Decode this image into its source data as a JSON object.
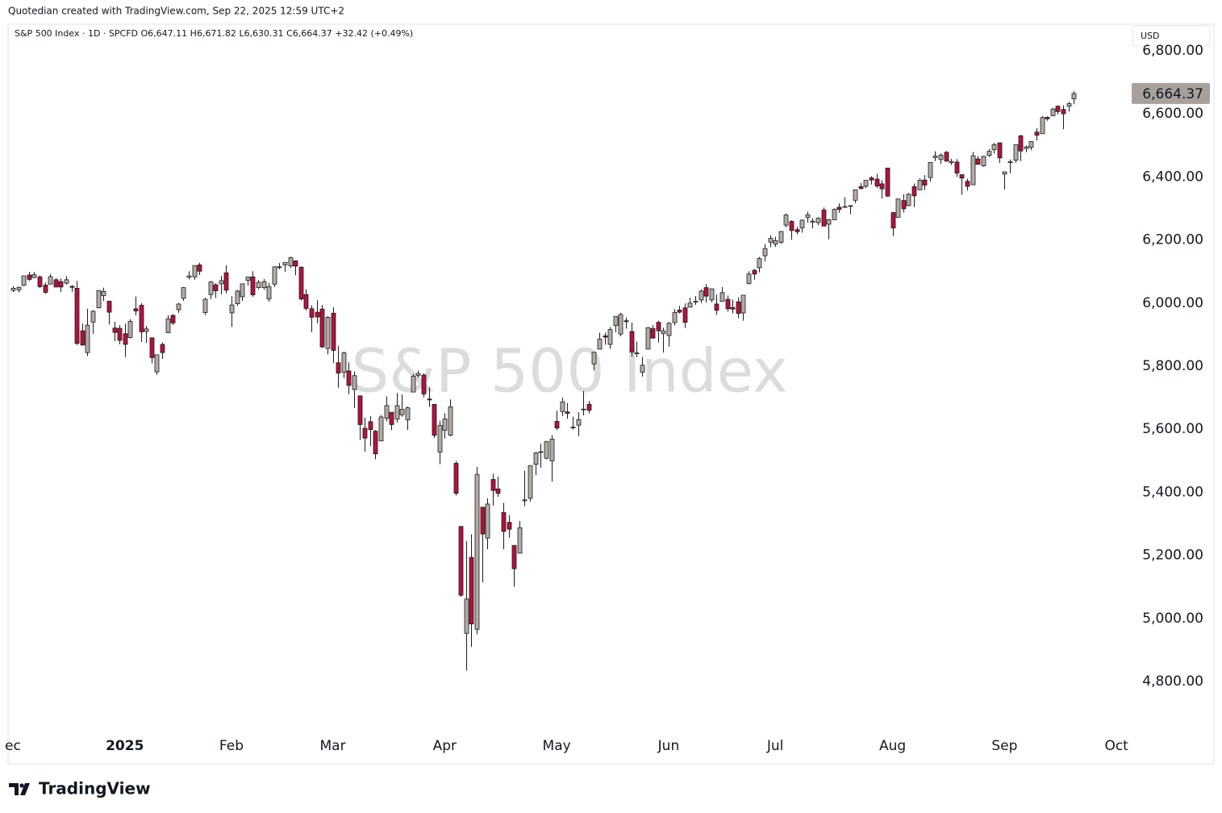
{
  "header": {
    "credit": "Quotedian created with TradingView.com, Sep 22, 2025 12:59 UTC+2",
    "legend": {
      "symbol": "S&P 500 Index · 1D · SPCFD",
      "open": "O6,647.11",
      "high": "H6,671.82",
      "low": "L6,630.31",
      "close": "C6,664.37",
      "change": "+32.42 (+0.49%)"
    },
    "currency": "USD"
  },
  "footer": {
    "logo": "TradingView"
  },
  "chart_data": {
    "type": "candlestick",
    "watermark": "S&P 500 Index",
    "up_color": "#b2aca7",
    "down_color": "#b3123e",
    "border_color": "#1b1b1b",
    "grid": false,
    "xlim": [
      -0.9,
      209.7
    ],
    "xticks": [
      {
        "value": 0,
        "label": "ec"
      },
      {
        "value": 21,
        "label": "2025"
      },
      {
        "value": 41,
        "label": "Feb"
      },
      {
        "value": 60,
        "label": "Mar"
      },
      {
        "value": 81,
        "label": "Apr"
      },
      {
        "value": 102,
        "label": "May"
      },
      {
        "value": 123,
        "label": "Jun"
      },
      {
        "value": 143,
        "label": "Jul"
      },
      {
        "value": 165,
        "label": "Aug"
      },
      {
        "value": 186,
        "label": "Sep"
      },
      {
        "value": 207,
        "label": "Oct"
      }
    ],
    "ylim": [
      4647,
      6884
    ],
    "yticks": [
      {
        "value": 4800,
        "label": "4,800.00"
      },
      {
        "value": 5000,
        "label": "5,000.00"
      },
      {
        "value": 5200,
        "label": "5,200.00"
      },
      {
        "value": 5400,
        "label": "5,400.00"
      },
      {
        "value": 5600,
        "label": "5,600.00"
      },
      {
        "value": 5800,
        "label": "5,800.00"
      },
      {
        "value": 6000,
        "label": "6,000.00"
      },
      {
        "value": 6200,
        "label": "6,200.00"
      },
      {
        "value": 6400,
        "label": "6,400.00"
      },
      {
        "value": 6600,
        "label": "6,600.00"
      },
      {
        "value": 6800,
        "label": "6,800.00"
      }
    ],
    "last_price": {
      "value": 6664.37,
      "label": "6,664.37"
    },
    "candles": [
      [
        6040,
        6053,
        6035,
        6047
      ],
      [
        6042,
        6052,
        6034,
        6050
      ],
      [
        6056,
        6087,
        6054,
        6086
      ],
      [
        6089,
        6099,
        6070,
        6075
      ],
      [
        6081,
        6099,
        6079,
        6090
      ],
      [
        6083,
        6088,
        6048,
        6052
      ],
      [
        6057,
        6065,
        6029,
        6034
      ],
      [
        6060,
        6092,
        6060,
        6084
      ],
      [
        6074,
        6079,
        6050,
        6051
      ],
      [
        6068,
        6078,
        6035,
        6051
      ],
      [
        6063,
        6085,
        6059,
        6074
      ],
      [
        6053,
        6057,
        6036,
        6050
      ],
      [
        6047,
        6070,
        5867,
        5872
      ],
      [
        5912,
        5935,
        5865,
        5867
      ],
      [
        5843,
        5982,
        5832,
        5930
      ],
      [
        5940,
        5978,
        5902,
        5974
      ],
      [
        5985,
        6040,
        5983,
        6040
      ],
      [
        6024,
        6049,
        6007,
        6037
      ],
      [
        6006,
        6006,
        5932,
        5971
      ],
      [
        5921,
        5941,
        5879,
        5907
      ],
      [
        5920,
        5930,
        5869,
        5882
      ],
      [
        5903,
        5935,
        5829,
        5869
      ],
      [
        5891,
        5949,
        5888,
        5942
      ],
      [
        5982,
        6021,
        5961,
        5975
      ],
      [
        5993,
        6000,
        5877,
        5909
      ],
      [
        5910,
        5928,
        5874,
        5918
      ],
      [
        5890,
        5890,
        5809,
        5827
      ],
      [
        5782,
        5836,
        5773,
        5836
      ],
      [
        5869,
        5875,
        5823,
        5843
      ],
      [
        5906,
        5961,
        5906,
        5950
      ],
      [
        5961,
        5965,
        5930,
        5937
      ],
      [
        5979,
        6000,
        5969,
        5997
      ],
      [
        6015,
        6051,
        6007,
        6049
      ],
      [
        6082,
        6101,
        6075,
        6086
      ],
      [
        6083,
        6119,
        6074,
        6119
      ],
      [
        6121,
        6128,
        6089,
        6101
      ],
      [
        5970,
        6017,
        5962,
        6012
      ],
      [
        6027,
        6070,
        6012,
        6067
      ],
      [
        6058,
        6063,
        6016,
        6039
      ],
      [
        6061,
        6086,
        6028,
        6071
      ],
      [
        6096,
        6120,
        6031,
        6041
      ],
      [
        5969,
        6022,
        5924,
        5994
      ],
      [
        5998,
        6042,
        5991,
        6038
      ],
      [
        6020,
        6062,
        6007,
        6061
      ],
      [
        6072,
        6084,
        6056,
        6083
      ],
      [
        6083,
        6101,
        6020,
        6026
      ],
      [
        6049,
        6073,
        6044,
        6066
      ],
      [
        6049,
        6076,
        6042,
        6068
      ],
      [
        6013,
        6064,
        6004,
        6052
      ],
      [
        6060,
        6116,
        6051,
        6115
      ],
      [
        6115,
        6127,
        6107,
        6115
      ],
      [
        6121,
        6129,
        6099,
        6129
      ],
      [
        6118,
        6147,
        6111,
        6144
      ],
      [
        6134,
        6135,
        6088,
        6117
      ],
      [
        6114,
        6115,
        6008,
        6013
      ],
      [
        6027,
        6044,
        5977,
        5983
      ],
      [
        5982,
        5993,
        5908,
        5955
      ],
      [
        5971,
        6009,
        5936,
        5956
      ],
      [
        5981,
        5994,
        5858,
        5861
      ],
      [
        5856,
        5959,
        5837,
        5955
      ],
      [
        5968,
        5987,
        5810,
        5850
      ],
      [
        5811,
        5865,
        5732,
        5778
      ],
      [
        5781,
        5846,
        5763,
        5842
      ],
      [
        5785,
        5812,
        5711,
        5739
      ],
      [
        5726,
        5783,
        5667,
        5770
      ],
      [
        5706,
        5706,
        5566,
        5615
      ],
      [
        5603,
        5637,
        5529,
        5572
      ],
      [
        5624,
        5642,
        5547,
        5599
      ],
      [
        5594,
        5598,
        5505,
        5522
      ],
      [
        5563,
        5645,
        5563,
        5639
      ],
      [
        5635,
        5704,
        5625,
        5675
      ],
      [
        5654,
        5654,
        5597,
        5615
      ],
      [
        5632,
        5715,
        5622,
        5675
      ],
      [
        5646,
        5711,
        5640,
        5663
      ],
      [
        5630,
        5672,
        5598,
        5668
      ],
      [
        5718,
        5775,
        5718,
        5768
      ],
      [
        5771,
        5786,
        5764,
        5777
      ],
      [
        5772,
        5777,
        5701,
        5712
      ],
      [
        5696,
        5733,
        5671,
        5693
      ],
      [
        5679,
        5679,
        5572,
        5581
      ],
      [
        5528,
        5627,
        5489,
        5612
      ],
      [
        5597,
        5651,
        5571,
        5633
      ],
      [
        5581,
        5695,
        5578,
        5671
      ],
      [
        5492,
        5500,
        5390,
        5397
      ],
      [
        5292,
        5292,
        5069,
        5074
      ],
      [
        4953,
        5246,
        4835,
        5062
      ],
      [
        5194,
        5267,
        4910,
        4983
      ],
      [
        4966,
        5481,
        4950,
        5457
      ],
      [
        5353,
        5353,
        5115,
        5268
      ],
      [
        5255,
        5381,
        5220,
        5363
      ],
      [
        5441,
        5459,
        5358,
        5406
      ],
      [
        5411,
        5450,
        5386,
        5397
      ],
      [
        5336,
        5367,
        5220,
        5276
      ],
      [
        5305,
        5328,
        5256,
        5283
      ],
      [
        5232,
        5232,
        5101,
        5158
      ],
      [
        5207,
        5309,
        5207,
        5288
      ],
      [
        5375,
        5469,
        5356,
        5376
      ],
      [
        5381,
        5485,
        5371,
        5485
      ],
      [
        5489,
        5528,
        5455,
        5525
      ],
      [
        5529,
        5554,
        5478,
        5529
      ],
      [
        5508,
        5563,
        5505,
        5561
      ],
      [
        5500,
        5581,
        5434,
        5569
      ],
      [
        5625,
        5659,
        5597,
        5604
      ],
      [
        5656,
        5700,
        5642,
        5687
      ],
      [
        5655,
        5683,
        5633,
        5650
      ],
      [
        5605,
        5640,
        5599,
        5607
      ],
      [
        5613,
        5654,
        5578,
        5631
      ],
      [
        5663,
        5721,
        5644,
        5664
      ],
      [
        5679,
        5690,
        5650,
        5660
      ],
      [
        5807,
        5845,
        5786,
        5844
      ],
      [
        5854,
        5906,
        5854,
        5886
      ],
      [
        5896,
        5906,
        5868,
        5892
      ],
      [
        5869,
        5924,
        5855,
        5916
      ],
      [
        5929,
        5958,
        5907,
        5958
      ],
      [
        5902,
        5969,
        5895,
        5964
      ],
      [
        5944,
        5954,
        5919,
        5941
      ],
      [
        5910,
        5938,
        5830,
        5845
      ],
      [
        5841,
        5878,
        5828,
        5842
      ],
      [
        5781,
        5829,
        5767,
        5803
      ],
      [
        5854,
        5924,
        5854,
        5922
      ],
      [
        5919,
        5930,
        5887,
        5889
      ],
      [
        5939,
        5944,
        5875,
        5912
      ],
      [
        5903,
        5922,
        5843,
        5912
      ],
      [
        5897,
        5940,
        5862,
        5936
      ],
      [
        5938,
        5981,
        5929,
        5970
      ],
      [
        5978,
        5991,
        5967,
        5971
      ],
      [
        5985,
        5999,
        5921,
        5939
      ],
      [
        5987,
        6017,
        5987,
        6000
      ],
      [
        6005,
        6022,
        5994,
        6006
      ],
      [
        6010,
        6043,
        6000,
        6038
      ],
      [
        6049,
        6060,
        6002,
        6022
      ],
      [
        6010,
        6046,
        6003,
        6045
      ],
      [
        5997,
        6027,
        5963,
        5977
      ],
      [
        6005,
        6051,
        6005,
        6033
      ],
      [
        6012,
        6024,
        5973,
        5982
      ],
      [
        5986,
        6011,
        5967,
        5981
      ],
      [
        6004,
        6018,
        5952,
        5967
      ],
      [
        5969,
        6025,
        5944,
        6025
      ],
      [
        6062,
        6101,
        6059,
        6092
      ],
      [
        6104,
        6108,
        6074,
        6092
      ],
      [
        6112,
        6146,
        6097,
        6141
      ],
      [
        6150,
        6187,
        6132,
        6173
      ],
      [
        6193,
        6215,
        6177,
        6205
      ],
      [
        6187,
        6210,
        6178,
        6198
      ],
      [
        6193,
        6228,
        6188,
        6227
      ],
      [
        6247,
        6284,
        6240,
        6279
      ],
      [
        6259,
        6263,
        6201,
        6230
      ],
      [
        6233,
        6242,
        6218,
        6226
      ],
      [
        6238,
        6265,
        6223,
        6263
      ],
      [
        6271,
        6290,
        6254,
        6280
      ],
      [
        6256,
        6269,
        6237,
        6260
      ],
      [
        6255,
        6272,
        6247,
        6269
      ],
      [
        6295,
        6303,
        6244,
        6244
      ],
      [
        6250,
        6267,
        6202,
        6264
      ],
      [
        6264,
        6300,
        6263,
        6297
      ],
      [
        6304,
        6316,
        6286,
        6297
      ],
      [
        6305,
        6336,
        6304,
        6306
      ],
      [
        6307,
        6310,
        6282,
        6309
      ],
      [
        6326,
        6360,
        6317,
        6359
      ],
      [
        6369,
        6381,
        6360,
        6363
      ],
      [
        6370,
        6390,
        6364,
        6389
      ],
      [
        6397,
        6402,
        6376,
        6390
      ],
      [
        6393,
        6410,
        6365,
        6371
      ],
      [
        6378,
        6390,
        6331,
        6362
      ],
      [
        6428,
        6428,
        6337,
        6339
      ],
      [
        6287,
        6288,
        6212,
        6238
      ],
      [
        6272,
        6330,
        6272,
        6330
      ],
      [
        6325,
        6345,
        6287,
        6299
      ],
      [
        6309,
        6349,
        6307,
        6345
      ],
      [
        6369,
        6379,
        6304,
        6340
      ],
      [
        6359,
        6395,
        6358,
        6389
      ],
      [
        6390,
        6406,
        6358,
        6374
      ],
      [
        6398,
        6446,
        6385,
        6446
      ],
      [
        6461,
        6481,
        6450,
        6466
      ],
      [
        6455,
        6475,
        6441,
        6469
      ],
      [
        6478,
        6482,
        6448,
        6450
      ],
      [
        6445,
        6457,
        6438,
        6449
      ],
      [
        6447,
        6456,
        6400,
        6412
      ],
      [
        6407,
        6407,
        6343,
        6396
      ],
      [
        6386,
        6394,
        6357,
        6370
      ],
      [
        6375,
        6479,
        6374,
        6467
      ],
      [
        6457,
        6466,
        6438,
        6440
      ],
      [
        6435,
        6467,
        6432,
        6465
      ],
      [
        6468,
        6488,
        6463,
        6481
      ],
      [
        6486,
        6508,
        6474,
        6502
      ],
      [
        6508,
        6508,
        6444,
        6460
      ],
      [
        6409,
        6416,
        6360,
        6416
      ],
      [
        6445,
        6455,
        6412,
        6448
      ],
      [
        6453,
        6502,
        6445,
        6502
      ],
      [
        6530,
        6533,
        6450,
        6482
      ],
      [
        6490,
        6500,
        6478,
        6495
      ],
      [
        6494,
        6513,
        6485,
        6512
      ],
      [
        6542,
        6555,
        6516,
        6532
      ],
      [
        6537,
        6593,
        6536,
        6588
      ],
      [
        6589,
        6592,
        6578,
        6584
      ],
      [
        6594,
        6619,
        6592,
        6615
      ],
      [
        6624,
        6627,
        6598,
        6607
      ],
      [
        6614,
        6627,
        6551,
        6600
      ],
      [
        6624,
        6638,
        6607,
        6632
      ],
      [
        6647.11,
        6671.82,
        6630.31,
        6664.37
      ]
    ]
  }
}
